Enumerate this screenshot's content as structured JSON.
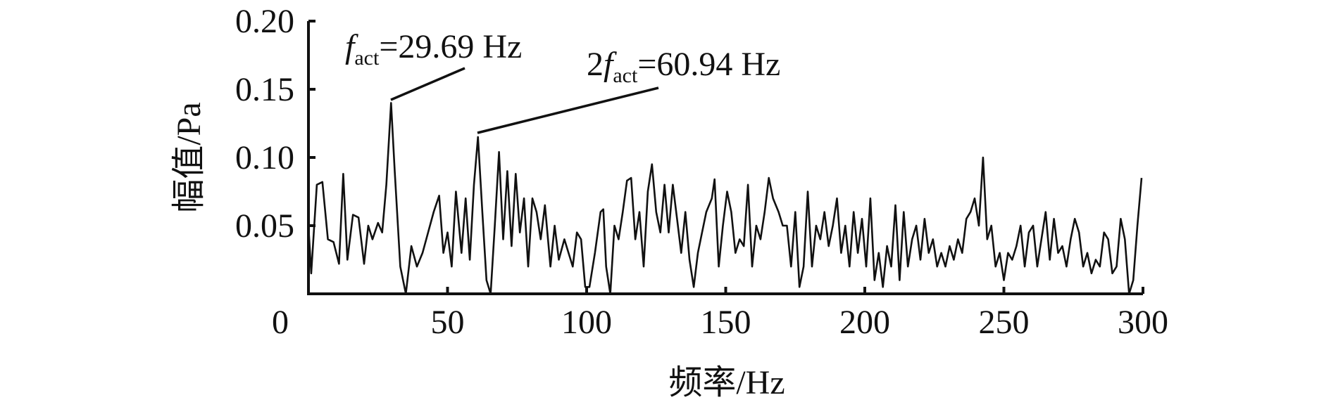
{
  "chart_data": {
    "type": "line",
    "xlabel": "频率/Hz",
    "ylabel": "幅值/Pa",
    "annotations": [
      {
        "symbol": "f",
        "subscript": "act",
        "text": "=29.69 Hz"
      },
      {
        "prefix": "2",
        "symbol": "f",
        "subscript": "act",
        "text": "=60.94 Hz"
      }
    ],
    "xlim": [
      0,
      300
    ],
    "xticks": [
      0,
      50,
      100,
      150,
      200,
      250,
      300
    ],
    "ylim": [
      0,
      0.2
    ],
    "yticks": [
      0.05,
      {
        "value": 0.1,
        "label": "0.10"
      },
      0.15,
      {
        "value": 0.2,
        "label": "0.20"
      }
    ],
    "grid": false,
    "series": [
      {
        "color": "#111111",
        "x": [
          0,
          1,
          3,
          5,
          7,
          9,
          11,
          12.5,
          14,
          16,
          18,
          20,
          21.5,
          23,
          25,
          26.5,
          28,
          29.69,
          31,
          33,
          35,
          37,
          39,
          41,
          43,
          45,
          47,
          48.5,
          50,
          51.5,
          53,
          55,
          56.5,
          58,
          59.5,
          60.94,
          62.5,
          64,
          65.5,
          67,
          68.5,
          70,
          71.5,
          73,
          74.5,
          76,
          77.5,
          79,
          80.5,
          82,
          83.5,
          85,
          87,
          88.5,
          90,
          92,
          93.5,
          95,
          96.5,
          98,
          99.5,
          101,
          103,
          105,
          106,
          107,
          108.5,
          110,
          111.5,
          113,
          114.5,
          116,
          117.5,
          119,
          120.5,
          122,
          123.5,
          125,
          126.5,
          128,
          129.5,
          131,
          132.5,
          134,
          135.5,
          137,
          138.5,
          140,
          141.5,
          143,
          145,
          146,
          147.5,
          149,
          150.5,
          152,
          153.5,
          155,
          156.5,
          158,
          159.5,
          161,
          162.5,
          164,
          165.5,
          167,
          169,
          170.5,
          172,
          173.5,
          175,
          176.5,
          178,
          179.5,
          181,
          182.5,
          184,
          185.5,
          187,
          188.5,
          190,
          191.5,
          193,
          194.5,
          196,
          197.5,
          199,
          200.5,
          202,
          203.5,
          205,
          206.5,
          208,
          209.5,
          211,
          212.5,
          214,
          215.5,
          217,
          218.5,
          220,
          221.5,
          223,
          224.5,
          226,
          227.5,
          229,
          230.5,
          232,
          233.5,
          235,
          236.5,
          238,
          239.5,
          241,
          242.5,
          244,
          245.5,
          247,
          248.5,
          250,
          251.5,
          253,
          254.5,
          256,
          257.5,
          259,
          260.5,
          262,
          263.5,
          265,
          266.5,
          268,
          269.5,
          271,
          272.5,
          274,
          275.5,
          277,
          278.5,
          280,
          281.5,
          283,
          284.5,
          286,
          287.5,
          289,
          290.5,
          292,
          293.5,
          295,
          296.5,
          298,
          299.5
        ],
        "values": [
          0.05,
          0.015,
          0.08,
          0.082,
          0.04,
          0.038,
          0.022,
          0.088,
          0.025,
          0.058,
          0.056,
          0.022,
          0.05,
          0.04,
          0.052,
          0.045,
          0.08,
          0.14,
          0.09,
          0.02,
          0.0,
          0.035,
          0.02,
          0.03,
          0.045,
          0.06,
          0.072,
          0.03,
          0.045,
          0.02,
          0.075,
          0.03,
          0.07,
          0.025,
          0.08,
          0.115,
          0.06,
          0.01,
          0.0,
          0.05,
          0.104,
          0.04,
          0.09,
          0.035,
          0.088,
          0.045,
          0.07,
          0.02,
          0.07,
          0.06,
          0.04,
          0.065,
          0.02,
          0.05,
          0.025,
          0.04,
          0.03,
          0.02,
          0.045,
          0.04,
          0.005,
          0.005,
          0.03,
          0.06,
          0.062,
          0.02,
          0.0,
          0.05,
          0.04,
          0.06,
          0.083,
          0.085,
          0.04,
          0.06,
          0.02,
          0.075,
          0.095,
          0.06,
          0.045,
          0.08,
          0.045,
          0.08,
          0.055,
          0.03,
          0.06,
          0.025,
          0.005,
          0.03,
          0.045,
          0.06,
          0.07,
          0.084,
          0.02,
          0.05,
          0.075,
          0.06,
          0.03,
          0.04,
          0.035,
          0.08,
          0.02,
          0.05,
          0.04,
          0.06,
          0.085,
          0.07,
          0.06,
          0.05,
          0.05,
          0.02,
          0.06,
          0.005,
          0.02,
          0.075,
          0.02,
          0.05,
          0.04,
          0.06,
          0.035,
          0.05,
          0.07,
          0.03,
          0.05,
          0.02,
          0.06,
          0.03,
          0.055,
          0.02,
          0.07,
          0.01,
          0.03,
          0.005,
          0.035,
          0.02,
          0.065,
          0.01,
          0.06,
          0.02,
          0.04,
          0.05,
          0.025,
          0.055,
          0.03,
          0.04,
          0.02,
          0.03,
          0.02,
          0.035,
          0.025,
          0.04,
          0.03,
          0.055,
          0.06,
          0.07,
          0.05,
          0.1,
          0.04,
          0.05,
          0.02,
          0.03,
          0.01,
          0.03,
          0.025,
          0.035,
          0.05,
          0.02,
          0.045,
          0.05,
          0.02,
          0.04,
          0.06,
          0.025,
          0.055,
          0.03,
          0.035,
          0.02,
          0.04,
          0.055,
          0.045,
          0.02,
          0.03,
          0.015,
          0.025,
          0.02,
          0.045,
          0.04,
          0.015,
          0.02,
          0.055,
          0.04,
          0.0,
          0.01,
          0.05,
          0.085
        ]
      }
    ]
  }
}
